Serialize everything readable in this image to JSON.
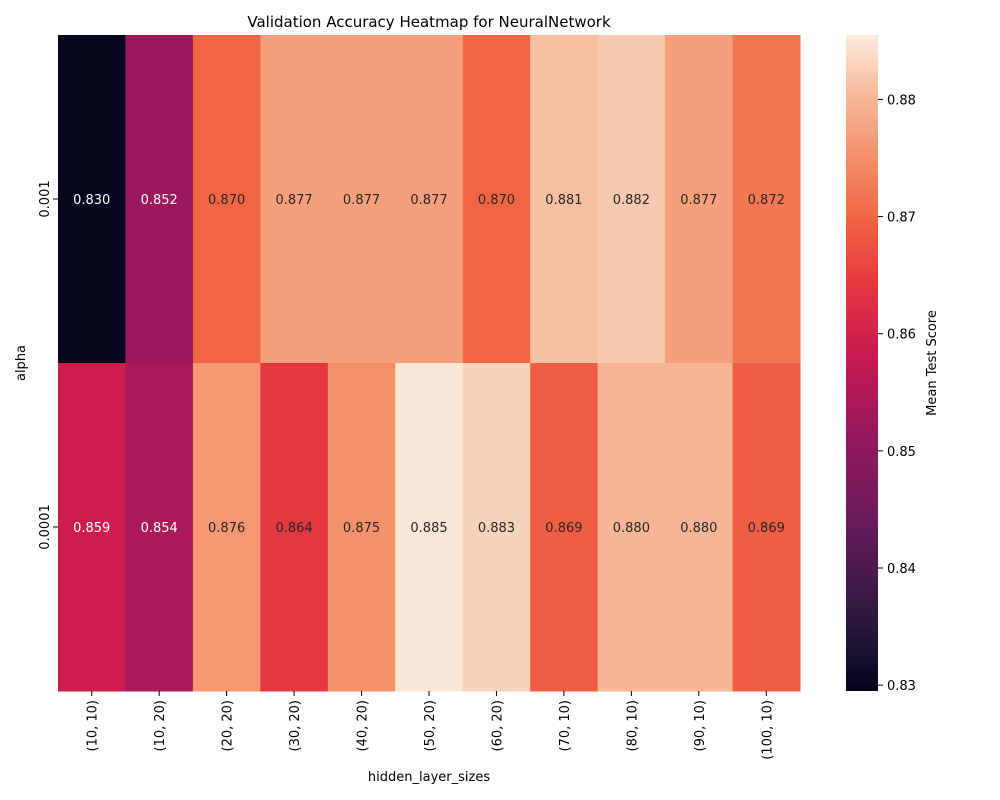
{
  "chart_data": {
    "type": "heatmap",
    "title": "Validation Accuracy Heatmap for NeuralNetwork",
    "xlabel": "hidden_layer_sizes",
    "ylabel": "alpha",
    "x_categories": [
      "(10, 10)",
      "(10, 20)",
      "(20, 20)",
      "(30, 20)",
      "(40, 20)",
      "(50, 20)",
      "(60, 20)",
      "(70, 10)",
      "(80, 10)",
      "(90, 10)",
      "(100, 10)"
    ],
    "y_categories": [
      "0.001",
      "0.0001"
    ],
    "values": [
      [
        0.83,
        0.852,
        0.87,
        0.877,
        0.877,
        0.877,
        0.87,
        0.881,
        0.882,
        0.877,
        0.872
      ],
      [
        0.859,
        0.854,
        0.876,
        0.864,
        0.875,
        0.885,
        0.883,
        0.869,
        0.88,
        0.88,
        0.869
      ]
    ],
    "value_format": "3 decimals",
    "colorbar": {
      "label": "Mean Test Score",
      "range": [
        0.8295,
        0.8855
      ],
      "ticks": [
        "0.83",
        "0.84",
        "0.85",
        "0.86",
        "0.87",
        "0.88"
      ],
      "colormap": "rocket"
    },
    "grid": false
  }
}
